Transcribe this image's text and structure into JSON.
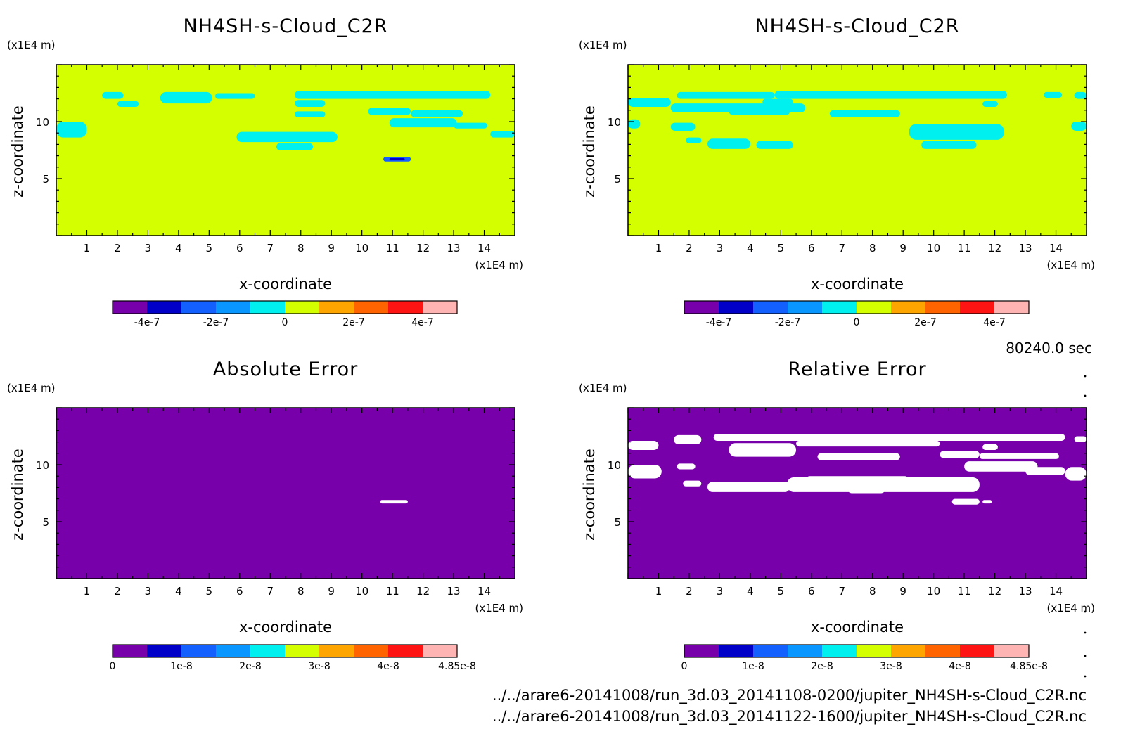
{
  "chart_data": [
    {
      "type": "heatmap",
      "title": "NH4SH-s-Cloud_C2R",
      "xlabel": "x-coordinate",
      "ylabel": "z-coordinate",
      "x_unit": "(x1E4 m)",
      "y_unit": "(x1E4 m)",
      "xlim": [
        0,
        15
      ],
      "ylim": [
        0,
        15
      ],
      "x_ticks": [
        1,
        2,
        3,
        4,
        5,
        6,
        7,
        8,
        9,
        10,
        11,
        12,
        13,
        14
      ],
      "y_ticks": [
        5,
        10
      ],
      "background_color": "#d4ff00",
      "patches": [
        {
          "color": "#00f0f0",
          "x": [
            1.5,
            2.2
          ],
          "y": [
            12.0,
            12.6
          ]
        },
        {
          "color": "#00f0f0",
          "x": [
            2.0,
            2.7
          ],
          "y": [
            11.3,
            11.8
          ]
        },
        {
          "color": "#00f0f0",
          "x": [
            3.4,
            5.1
          ],
          "y": [
            11.6,
            12.6
          ]
        },
        {
          "color": "#00f0f0",
          "x": [
            5.2,
            6.5
          ],
          "y": [
            12.0,
            12.5
          ]
        },
        {
          "color": "#00f0f0",
          "x": [
            7.8,
            14.2
          ],
          "y": [
            12.0,
            12.7
          ]
        },
        {
          "color": "#00f0f0",
          "x": [
            7.8,
            8.8
          ],
          "y": [
            11.3,
            11.9
          ]
        },
        {
          "color": "#00f0f0",
          "x": [
            7.8,
            8.8
          ],
          "y": [
            10.4,
            10.9
          ]
        },
        {
          "color": "#00f0f0",
          "x": [
            10.2,
            11.6
          ],
          "y": [
            10.6,
            11.2
          ]
        },
        {
          "color": "#00f0f0",
          "x": [
            11.6,
            13.3
          ],
          "y": [
            10.4,
            11.0
          ]
        },
        {
          "color": "#00f0f0",
          "x": [
            10.9,
            13.1
          ],
          "y": [
            9.5,
            10.3
          ]
        },
        {
          "color": "#00f0f0",
          "x": [
            13.0,
            14.1
          ],
          "y": [
            9.4,
            9.9
          ]
        },
        {
          "color": "#00f0f0",
          "x": [
            14.2,
            15.0
          ],
          "y": [
            8.6,
            9.2
          ]
        },
        {
          "color": "#00f0f0",
          "x": [
            0.0,
            1.0
          ],
          "y": [
            8.6,
            10.0
          ]
        },
        {
          "color": "#00f0f0",
          "x": [
            5.9,
            9.2
          ],
          "y": [
            8.2,
            9.1
          ]
        },
        {
          "color": "#00f0f0",
          "x": [
            7.2,
            8.4
          ],
          "y": [
            7.5,
            8.1
          ]
        },
        {
          "color": "#1460ff",
          "x": [
            10.7,
            11.6
          ],
          "y": [
            6.5,
            6.9
          ]
        },
        {
          "color": "#0000c8",
          "x": [
            10.9,
            11.4
          ],
          "y": [
            6.6,
            6.8
          ]
        }
      ]
    },
    {
      "type": "heatmap",
      "title": "NH4SH-s-Cloud_C2R",
      "xlabel": "x-coordinate",
      "ylabel": "z-coordinate",
      "x_unit": "(x1E4 m)",
      "y_unit": "(x1E4 m)",
      "xlim": [
        0,
        15
      ],
      "ylim": [
        0,
        15
      ],
      "x_ticks": [
        1,
        2,
        3,
        4,
        5,
        6,
        7,
        8,
        9,
        10,
        11,
        12,
        13,
        14
      ],
      "y_ticks": [
        5,
        10
      ],
      "background_color": "#d4ff00",
      "patches": [
        {
          "color": "#00f0f0",
          "x": [
            0.0,
            1.4
          ],
          "y": [
            11.3,
            12.1
          ]
        },
        {
          "color": "#00f0f0",
          "x": [
            1.4,
            5.8
          ],
          "y": [
            10.8,
            11.6
          ]
        },
        {
          "color": "#00f0f0",
          "x": [
            1.6,
            4.8
          ],
          "y": [
            12.0,
            12.6
          ]
        },
        {
          "color": "#00f0f0",
          "x": [
            4.8,
            12.4
          ],
          "y": [
            12.0,
            12.7
          ]
        },
        {
          "color": "#00f0f0",
          "x": [
            4.4,
            5.4
          ],
          "y": [
            11.5,
            12.0
          ]
        },
        {
          "color": "#00f0f0",
          "x": [
            3.3,
            5.3
          ],
          "y": [
            10.6,
            11.2
          ]
        },
        {
          "color": "#00f0f0",
          "x": [
            11.6,
            12.1
          ],
          "y": [
            11.3,
            11.8
          ]
        },
        {
          "color": "#00f0f0",
          "x": [
            13.6,
            14.2
          ],
          "y": [
            12.1,
            12.6
          ]
        },
        {
          "color": "#00f0f0",
          "x": [
            14.6,
            15.0
          ],
          "y": [
            12.0,
            12.6
          ]
        },
        {
          "color": "#00f0f0",
          "x": [
            6.6,
            8.9
          ],
          "y": [
            10.4,
            11.0
          ]
        },
        {
          "color": "#00f0f0",
          "x": [
            0.0,
            0.4
          ],
          "y": [
            9.4,
            10.2
          ]
        },
        {
          "color": "#00f0f0",
          "x": [
            1.4,
            2.2
          ],
          "y": [
            9.2,
            9.9
          ]
        },
        {
          "color": "#00f0f0",
          "x": [
            9.2,
            12.3
          ],
          "y": [
            8.4,
            9.8
          ]
        },
        {
          "color": "#00f0f0",
          "x": [
            14.5,
            15.0
          ],
          "y": [
            9.2,
            10.0
          ]
        },
        {
          "color": "#00f0f0",
          "x": [
            1.9,
            2.4
          ],
          "y": [
            8.1,
            8.6
          ]
        },
        {
          "color": "#00f0f0",
          "x": [
            2.6,
            4.0
          ],
          "y": [
            7.6,
            8.5
          ]
        },
        {
          "color": "#00f0f0",
          "x": [
            4.2,
            5.4
          ],
          "y": [
            7.6,
            8.3
          ]
        },
        {
          "color": "#00f0f0",
          "x": [
            9.6,
            11.4
          ],
          "y": [
            7.6,
            8.3
          ]
        }
      ],
      "info_label": "80240.0 sec"
    },
    {
      "type": "heatmap",
      "title": "Absolute Error",
      "xlabel": "x-coordinate",
      "ylabel": "z-coordinate",
      "x_unit": "(x1E4 m)",
      "y_unit": "(x1E4 m)",
      "xlim": [
        0,
        15
      ],
      "ylim": [
        0,
        15
      ],
      "x_ticks": [
        1,
        2,
        3,
        4,
        5,
        6,
        7,
        8,
        9,
        10,
        11,
        12,
        13,
        14
      ],
      "y_ticks": [
        5,
        10
      ],
      "background_color": "#7800aa",
      "patches": [
        {
          "color": "#ffffff",
          "x": [
            10.6,
            11.5
          ],
          "y": [
            6.6,
            6.9
          ]
        }
      ]
    },
    {
      "type": "heatmap",
      "title": "Relative Error",
      "xlabel": "x-coordinate",
      "ylabel": "z-coordinate",
      "x_unit": "(x1E4 m)",
      "y_unit": "(x1E4 m)",
      "xlim": [
        0,
        15
      ],
      "ylim": [
        0,
        15
      ],
      "x_ticks": [
        1,
        2,
        3,
        4,
        5,
        6,
        7,
        8,
        9,
        10,
        11,
        12,
        13,
        14
      ],
      "y_ticks": [
        5,
        10
      ],
      "background_color": "#7800aa",
      "patches": [
        {
          "color": "#ffffff",
          "x": [
            0.0,
            1.0
          ],
          "y": [
            11.3,
            12.1
          ]
        },
        {
          "color": "#ffffff",
          "x": [
            1.5,
            2.4
          ],
          "y": [
            11.8,
            12.6
          ]
        },
        {
          "color": "#ffffff",
          "x": [
            2.8,
            14.3
          ],
          "y": [
            12.1,
            12.7
          ]
        },
        {
          "color": "#ffffff",
          "x": [
            3.3,
            5.5
          ],
          "y": [
            10.7,
            11.9
          ]
        },
        {
          "color": "#ffffff",
          "x": [
            5.5,
            10.2
          ],
          "y": [
            11.6,
            12.1
          ]
        },
        {
          "color": "#ffffff",
          "x": [
            6.2,
            8.9
          ],
          "y": [
            10.4,
            11.0
          ]
        },
        {
          "color": "#ffffff",
          "x": [
            10.2,
            11.5
          ],
          "y": [
            10.6,
            11.2
          ]
        },
        {
          "color": "#ffffff",
          "x": [
            11.5,
            14.1
          ],
          "y": [
            10.5,
            11.0
          ]
        },
        {
          "color": "#ffffff",
          "x": [
            11.6,
            12.1
          ],
          "y": [
            11.3,
            11.8
          ]
        },
        {
          "color": "#ffffff",
          "x": [
            14.6,
            15.0
          ],
          "y": [
            12.0,
            12.5
          ]
        },
        {
          "color": "#ffffff",
          "x": [
            1.6,
            2.2
          ],
          "y": [
            9.6,
            10.1
          ]
        },
        {
          "color": "#ffffff",
          "x": [
            0.0,
            1.1
          ],
          "y": [
            8.8,
            10.0
          ]
        },
        {
          "color": "#ffffff",
          "x": [
            5.8,
            9.2
          ],
          "y": [
            8.2,
            9.0
          ]
        },
        {
          "color": "#ffffff",
          "x": [
            7.2,
            8.4
          ],
          "y": [
            7.5,
            8.1
          ]
        },
        {
          "color": "#ffffff",
          "x": [
            11.0,
            13.4
          ],
          "y": [
            9.4,
            10.3
          ]
        },
        {
          "color": "#ffffff",
          "x": [
            13.0,
            14.3
          ],
          "y": [
            9.1,
            9.8
          ]
        },
        {
          "color": "#ffffff",
          "x": [
            14.3,
            15.0
          ],
          "y": [
            8.6,
            9.8
          ]
        },
        {
          "color": "#ffffff",
          "x": [
            5.2,
            11.5
          ],
          "y": [
            7.6,
            8.9
          ]
        },
        {
          "color": "#ffffff",
          "x": [
            1.8,
            2.4
          ],
          "y": [
            8.1,
            8.6
          ]
        },
        {
          "color": "#ffffff",
          "x": [
            2.6,
            5.3
          ],
          "y": [
            7.6,
            8.5
          ]
        },
        {
          "color": "#ffffff",
          "x": [
            10.6,
            11.5
          ],
          "y": [
            6.5,
            7.0
          ]
        },
        {
          "color": "#ffffff",
          "x": [
            11.6,
            11.9
          ],
          "y": [
            6.6,
            6.9
          ]
        }
      ]
    }
  ],
  "colorbars": [
    {
      "colors": [
        "#7800aa",
        "#0000c8",
        "#1460ff",
        "#0a96ff",
        "#00f0f0",
        "#d4ff00",
        "#ffa500",
        "#ff6400",
        "#ff1414",
        "#ffb4b4"
      ],
      "labels": [
        "-4e-7",
        "-2e-7",
        "0",
        "2e-7",
        "4e-7"
      ],
      "label_positions_in_steps": [
        1,
        3,
        5,
        7,
        9
      ]
    },
    {
      "colors": [
        "#7800aa",
        "#0000c8",
        "#1460ff",
        "#0a96ff",
        "#00f0f0",
        "#d4ff00",
        "#ffa500",
        "#ff6400",
        "#ff1414",
        "#ffb4b4"
      ],
      "labels": [
        "-4e-7",
        "-2e-7",
        "0",
        "2e-7",
        "4e-7"
      ],
      "label_positions_in_steps": [
        1,
        3,
        5,
        7,
        9
      ]
    },
    {
      "colors": [
        "#7800aa",
        "#0000c8",
        "#1460ff",
        "#0a96ff",
        "#00f0f0",
        "#d4ff00",
        "#ffa500",
        "#ff6400",
        "#ff1414",
        "#ffb4b4"
      ],
      "labels": [
        "0",
        "1e-8",
        "2e-8",
        "3e-8",
        "4e-8",
        "4.85e-8"
      ],
      "label_positions_in_steps": [
        0,
        2,
        4,
        6,
        8,
        10
      ]
    },
    {
      "colors": [
        "#7800aa",
        "#0000c8",
        "#1460ff",
        "#0a96ff",
        "#00f0f0",
        "#d4ff00",
        "#ffa500",
        "#ff6400",
        "#ff1414",
        "#ffb4b4"
      ],
      "labels": [
        "0",
        "1e-8",
        "2e-8",
        "3e-8",
        "4e-8",
        "4.85e-8"
      ],
      "label_positions_in_steps": [
        0,
        2,
        4,
        6,
        8,
        10
      ]
    }
  ],
  "footer": {
    "file_a": "../../arare6-20141008/run_3d.03_20141108-0200/jupiter_NH4SH-s-Cloud_C2R.nc",
    "file_b": "../../arare6-20141008/run_3d.03_20141122-1600/jupiter_NH4SH-s-Cloud_C2R.nc"
  }
}
